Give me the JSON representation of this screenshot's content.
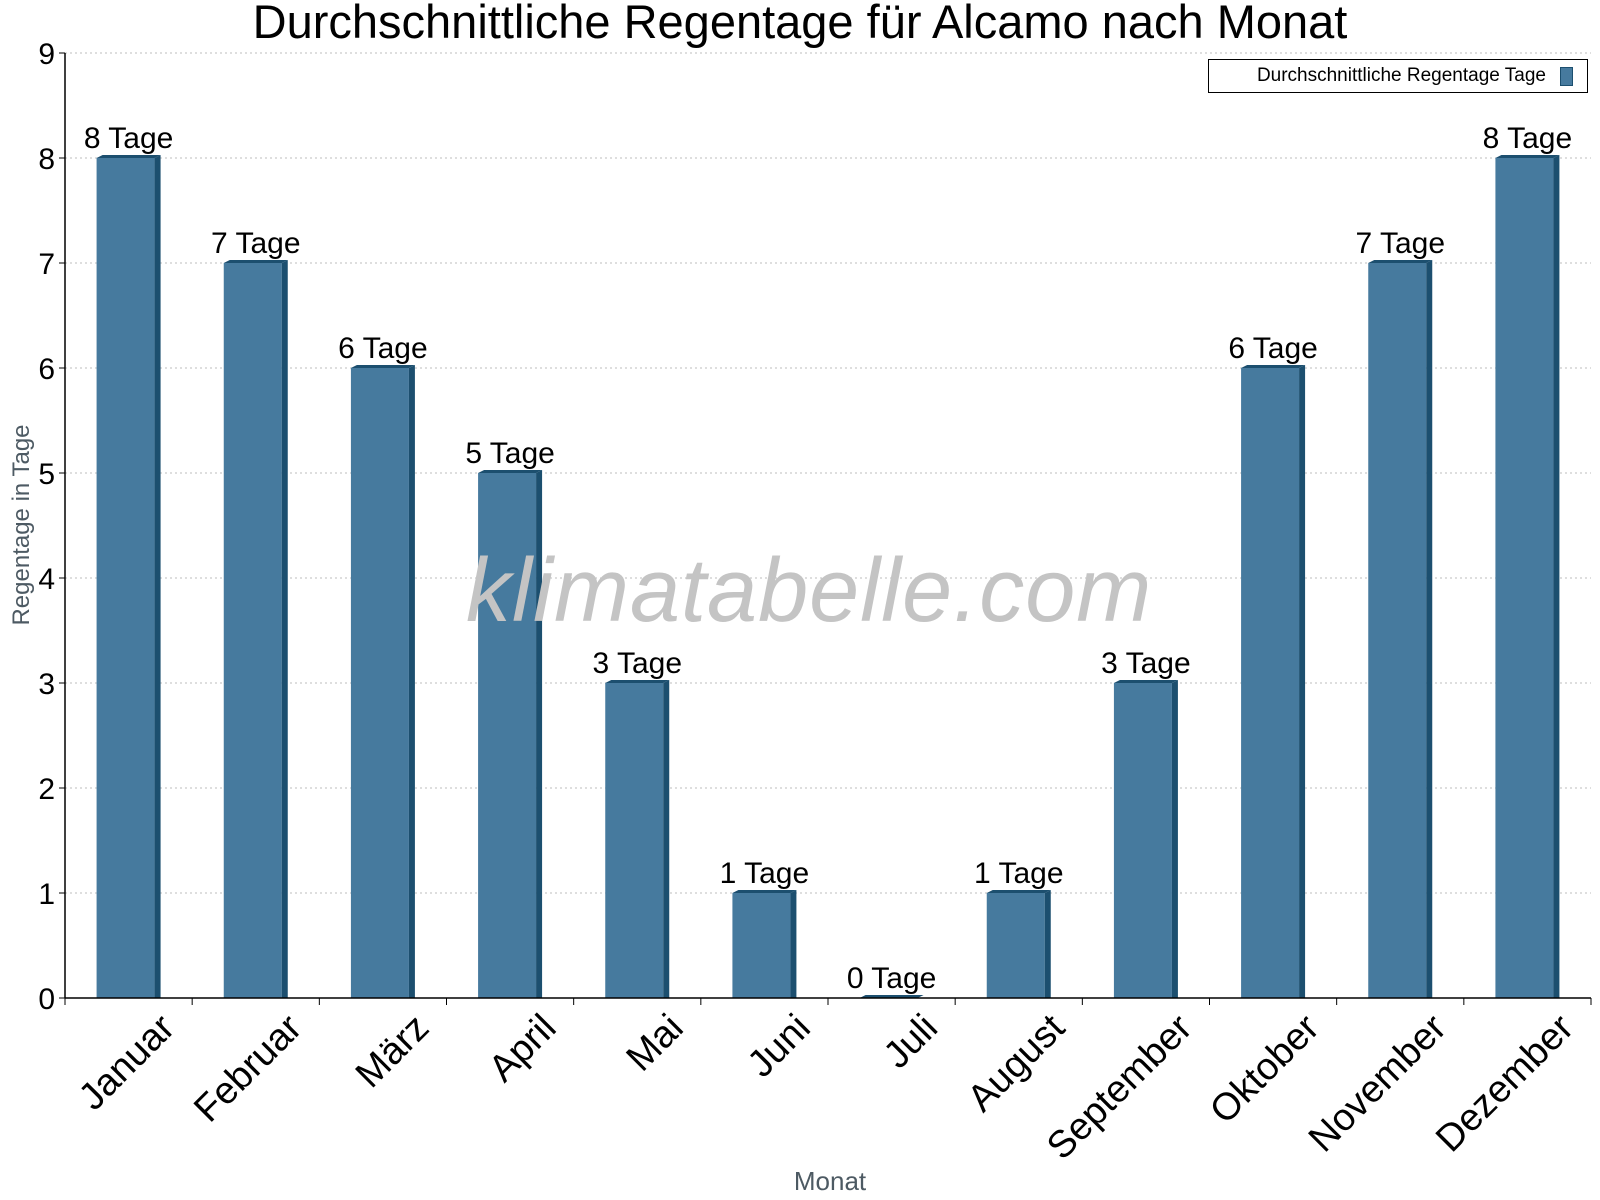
{
  "chart_data": {
    "type": "bar",
    "title": "Durchschnittliche Regentage für Alcamo nach Monat",
    "xlabel": "Monat",
    "ylabel": "Regentage in Tage",
    "categories": [
      "Januar",
      "Februar",
      "März",
      "April",
      "Mai",
      "Juni",
      "Juli",
      "August",
      "September",
      "Oktober",
      "November",
      "Dezember"
    ],
    "series": [
      {
        "name": "Durchschnittliche Regentage Tage",
        "values": [
          8,
          7,
          6,
          5,
          3,
          1,
          0,
          1,
          3,
          6,
          7,
          8
        ]
      }
    ],
    "data_labels": [
      "8 Tage",
      "7 Tage",
      "6 Tage",
      "5 Tage",
      "3 Tage",
      "1 Tage",
      "0 Tage",
      "1 Tage",
      "3 Tage",
      "6 Tage",
      "7 Tage",
      "8 Tage"
    ],
    "ylim": [
      0,
      9
    ],
    "yticks": [
      0,
      1,
      2,
      3,
      4,
      5,
      6,
      7,
      8,
      9
    ],
    "grid": true,
    "legend_position": "top-right",
    "bar_color": "#467a9e",
    "bar_edge_color": "#1c4f6f"
  },
  "watermark": "klimatabelle.com"
}
